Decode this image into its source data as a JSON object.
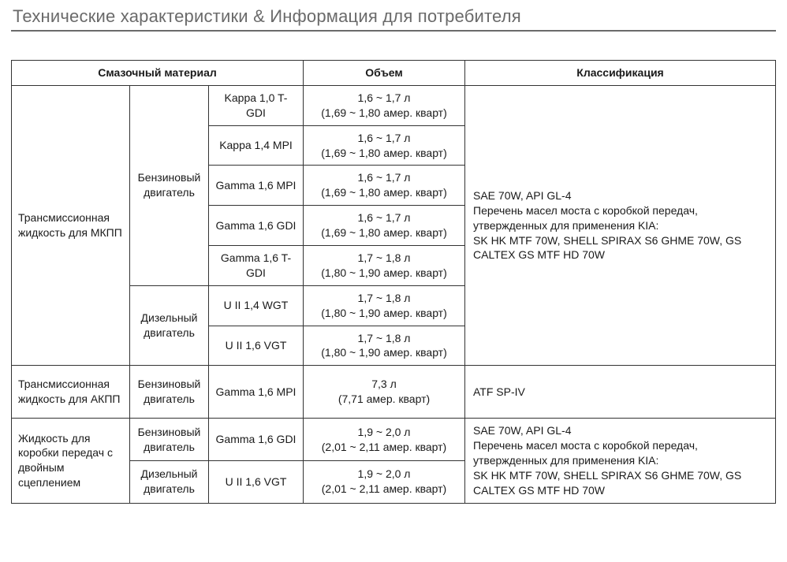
{
  "title": "Технические характеристики & Информация для потребителя",
  "headers": {
    "lubricant": "Смазочный материал",
    "volume": "Объем",
    "classification": "Классификация"
  },
  "groups": {
    "mkpp": {
      "label": "Трансмиссионная жидкость для МКПП",
      "engine_petrol": "Бензиновый двигатель",
      "engine_diesel": "Дизельный двигатель",
      "rows": [
        {
          "model": "Kappa 1,0 T-GDI",
          "vol_l": "1,6 ~ 1,7 л",
          "vol_q": "(1,69 ~ 1,80 амер. кварт)"
        },
        {
          "model": "Kappa 1,4 MPI",
          "vol_l": "1,6 ~ 1,7 л",
          "vol_q": "(1,69 ~ 1,80 амер. кварт)"
        },
        {
          "model": "Gamma 1,6 MPI",
          "vol_l": "1,6 ~ 1,7 л",
          "vol_q": "(1,69 ~ 1,80 амер. кварт)"
        },
        {
          "model": "Gamma 1,6 GDI",
          "vol_l": "1,6 ~ 1,7 л",
          "vol_q": "(1,69 ~ 1,80 амер. кварт)"
        },
        {
          "model": "Gamma 1,6 T-GDI",
          "vol_l": "1,7 ~ 1,8 л",
          "vol_q": "(1,80 ~ 1,90 амер. кварт)"
        },
        {
          "model": "U II 1,4 WGT",
          "vol_l": "1,7 ~ 1,8 л",
          "vol_q": "(1,80 ~ 1,90 амер. кварт)"
        },
        {
          "model": "U II 1,6 VGT",
          "vol_l": "1,7 ~ 1,8 л",
          "vol_q": "(1,80 ~ 1,90 амер. кварт)"
        }
      ],
      "classification": "SAE 70W, API GL-4\nПеречень масел моста с коробкой передач, утвержденных для применения KIA:\nSK HK MTF 70W, SHELL SPIRAX S6 GHME 70W, GS CALTEX GS MTF HD 70W"
    },
    "akpp": {
      "label": "Трансмиссионная жидкость для АКПП",
      "engine": "Бензиновый двигатель",
      "model": "Gamma 1,6 MPI",
      "vol_l": "7,3 л",
      "vol_q": "(7,71 амер. кварт)",
      "classification": "ATF SP-IV"
    },
    "dct": {
      "label": "Жидкость для коробки передач с двойным сцеплением",
      "engine_petrol": "Бензиновый двигатель",
      "engine_diesel": "Дизельный двигатель",
      "rows": [
        {
          "model": "Gamma 1,6 GDI",
          "vol_l": "1,9 ~ 2,0 л",
          "vol_q": "(2,01 ~ 2,11 амер. кварт)"
        },
        {
          "model": "U II 1,6 VGT",
          "vol_l": "1,9 ~ 2,0 л",
          "vol_q": "(2,01 ~ 2,11 амер. кварт)"
        }
      ],
      "classification": "SAE 70W, API GL-4\nПеречень масел моста с коробкой передач, утвержденных для применения KIA:\nSK HK MTF 70W, SHELL SPIRAX S6 GHME 70W, GS CALTEX GS MTF HD 70W"
    }
  }
}
